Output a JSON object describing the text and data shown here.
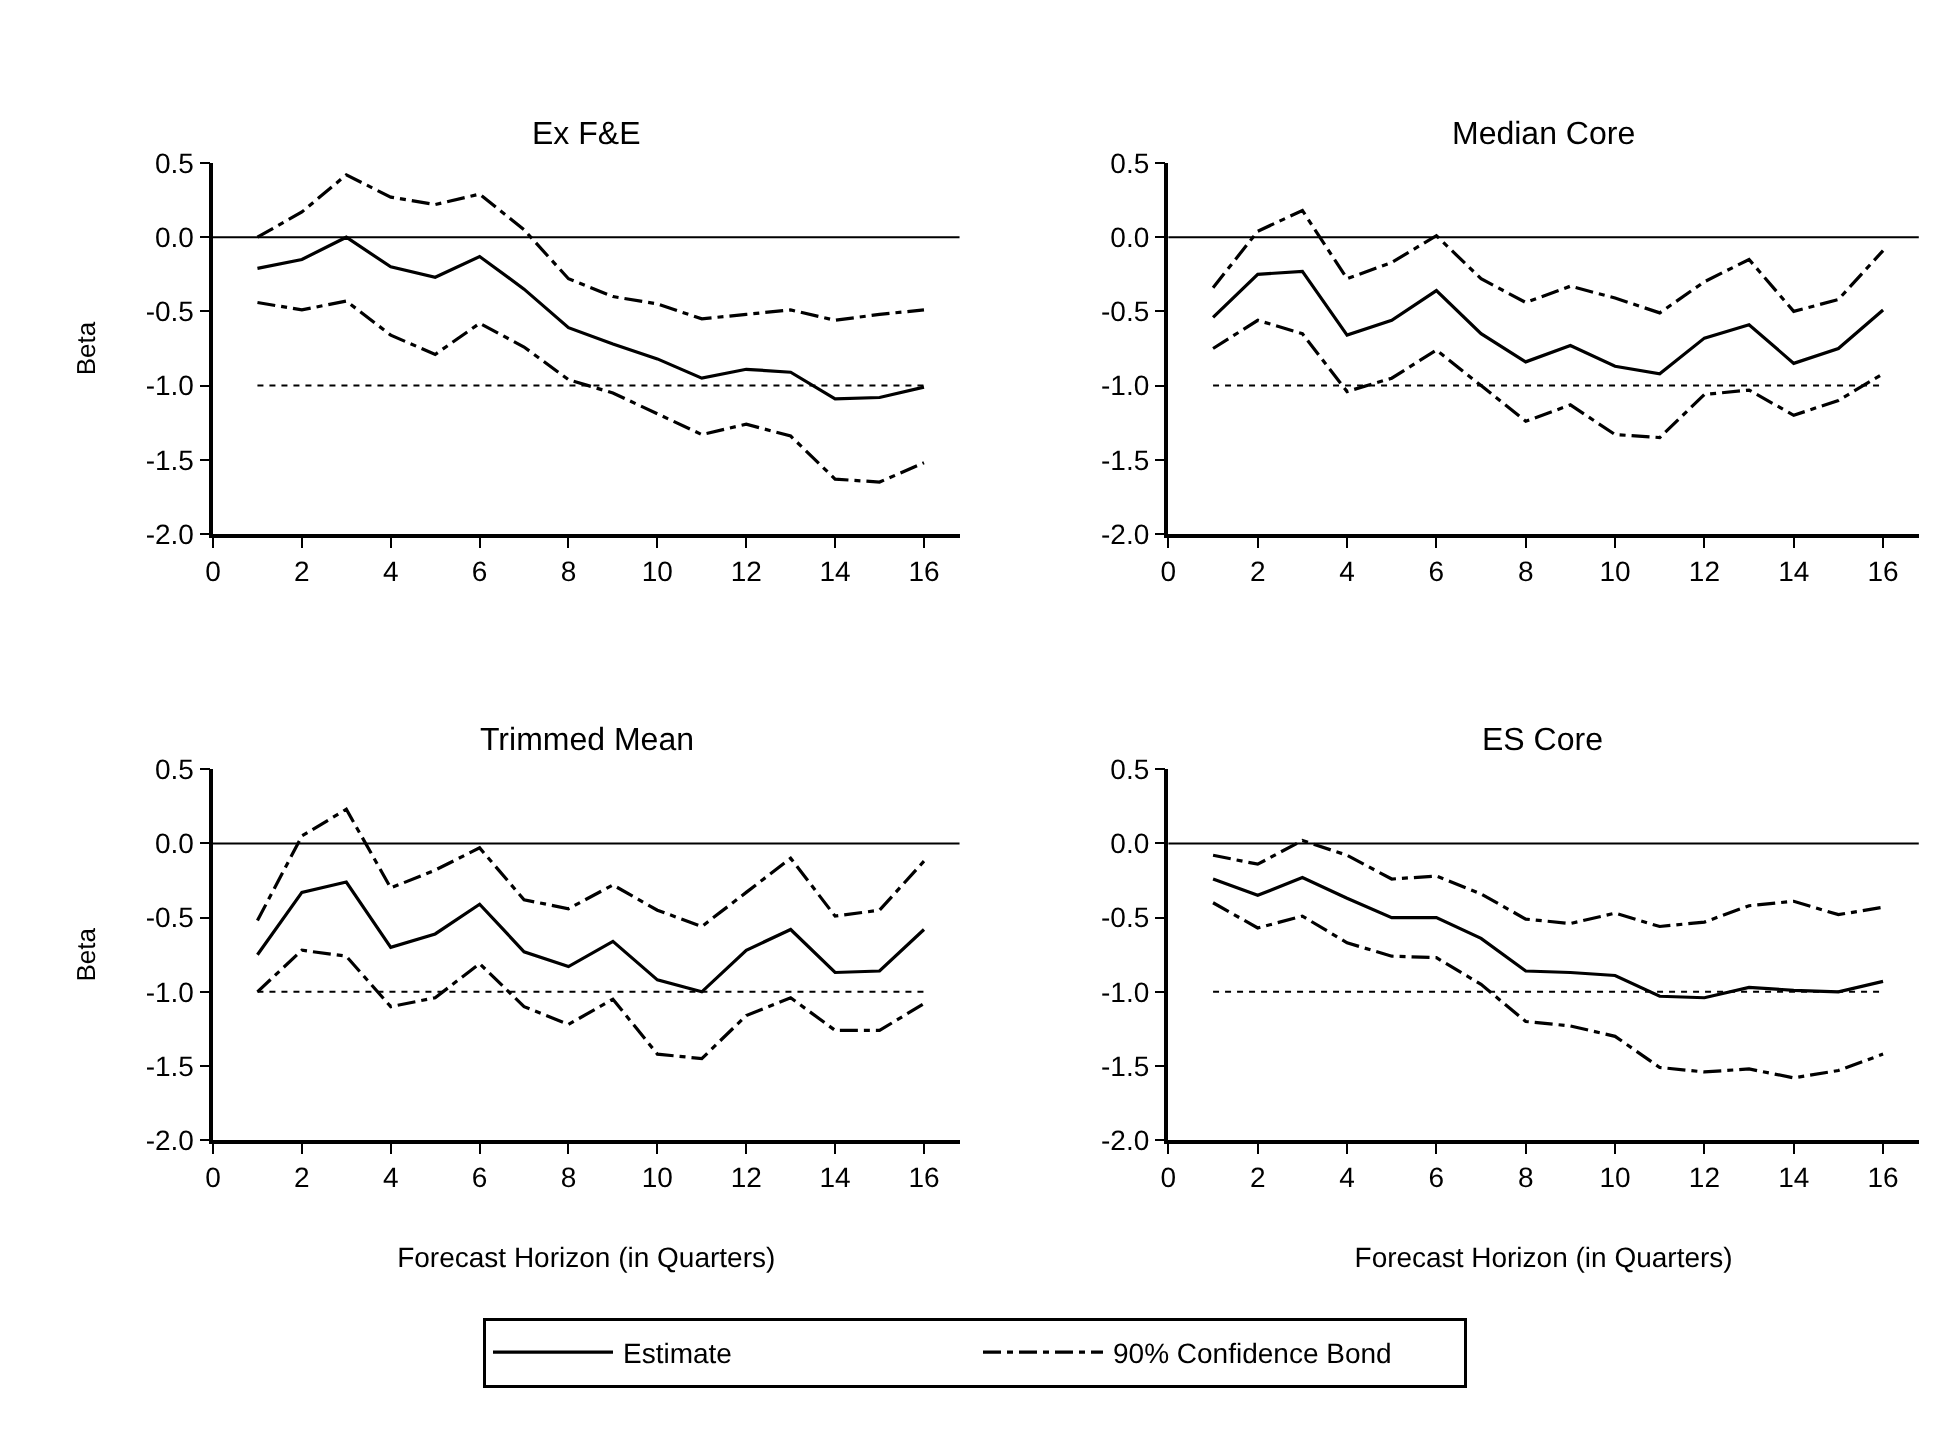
{
  "chart_data": [
    {
      "type": "line",
      "title": "Ex F&E",
      "ylabel": "Beta",
      "x": [
        1,
        2,
        3,
        4,
        5,
        6,
        7,
        8,
        9,
        10,
        11,
        12,
        13,
        14,
        15,
        16
      ],
      "xlim": [
        0,
        16.8
      ],
      "xticks": [
        0,
        2,
        4,
        6,
        8,
        10,
        12,
        14,
        16
      ],
      "ylim": [
        -2,
        0.5
      ],
      "yticks": [
        {
          "value": -2,
          "label": "-2.0"
        },
        {
          "value": -1.5,
          "label": "-1.5"
        },
        {
          "value": -1,
          "label": "-1.0"
        },
        {
          "value": -0.5,
          "label": "-0.5"
        },
        {
          "value": 0,
          "label": "0.0"
        },
        {
          "value": 0.5,
          "label": "0.5"
        }
      ],
      "legend": "bottom",
      "marker": "none",
      "series": [
        {
          "name": "Estimate",
          "color": "#000000",
          "line_style": "solid",
          "values": [
            -0.21,
            -0.15,
            0.0,
            -0.2,
            -0.27,
            -0.13,
            -0.35,
            -0.61,
            -0.72,
            -0.82,
            -0.95,
            -0.89,
            -0.91,
            -1.09,
            -1.08,
            -1.01
          ]
        },
        {
          "name": "90% Confidence Bond",
          "color": "#000000",
          "line_style": "dashdot",
          "values": [
            0.0,
            0.17,
            0.42,
            0.27,
            0.22,
            0.29,
            0.05,
            -0.28,
            -0.4,
            -0.45,
            -0.55,
            -0.52,
            -0.49,
            -0.56,
            -0.52,
            -0.49
          ]
        },
        {
          "color": "#000000",
          "line_style": "dashdot",
          "values": [
            -0.44,
            -0.49,
            -0.43,
            -0.66,
            -0.79,
            -0.58,
            -0.74,
            -0.96,
            -1.05,
            -1.19,
            -1.33,
            -1.26,
            -1.34,
            -1.63,
            -1.65,
            -1.52
          ]
        }
      ],
      "ref_lines": [
        {
          "axis": "y",
          "value": 0,
          "color": "#000000",
          "line_style": "solid"
        },
        {
          "axis": "y",
          "value": -1,
          "color": "#000000",
          "line_style": "dotted"
        }
      ]
    },
    {
      "type": "line",
      "title": "Median Core",
      "x": [
        1,
        2,
        3,
        4,
        5,
        6,
        7,
        8,
        9,
        10,
        11,
        12,
        13,
        14,
        15,
        16
      ],
      "xlim": [
        0,
        16.8
      ],
      "xticks": [
        0,
        2,
        4,
        6,
        8,
        10,
        12,
        14,
        16
      ],
      "ylim": [
        -2,
        0.5
      ],
      "yticks": [
        {
          "value": -2,
          "label": "-2.0"
        },
        {
          "value": -1.5,
          "label": "-1.5"
        },
        {
          "value": -1,
          "label": "-1.0"
        },
        {
          "value": -0.5,
          "label": "-0.5"
        },
        {
          "value": 0,
          "label": "0.0"
        },
        {
          "value": 0.5,
          "label": "0.5"
        }
      ],
      "legend": "bottom",
      "marker": "none",
      "series": [
        {
          "name": "Estimate",
          "color": "#000000",
          "line_style": "solid",
          "values": [
            -0.54,
            -0.25,
            -0.23,
            -0.66,
            -0.56,
            -0.36,
            -0.65,
            -0.84,
            -0.73,
            -0.87,
            -0.92,
            -0.68,
            -0.59,
            -0.85,
            -0.75,
            -0.49
          ]
        },
        {
          "name": "90% Confidence Bond",
          "color": "#000000",
          "line_style": "dashdot",
          "values": [
            -0.34,
            0.04,
            0.18,
            -0.28,
            -0.17,
            0.01,
            -0.28,
            -0.44,
            -0.33,
            -0.41,
            -0.51,
            -0.3,
            -0.15,
            -0.5,
            -0.42,
            -0.09
          ]
        },
        {
          "color": "#000000",
          "line_style": "dashdot",
          "values": [
            -0.75,
            -0.56,
            -0.65,
            -1.04,
            -0.95,
            -0.76,
            -1.0,
            -1.24,
            -1.13,
            -1.33,
            -1.35,
            -1.06,
            -1.03,
            -1.2,
            -1.1,
            -0.92
          ]
        }
      ],
      "ref_lines": [
        {
          "axis": "y",
          "value": 0,
          "color": "#000000",
          "line_style": "solid"
        },
        {
          "axis": "y",
          "value": -1,
          "color": "#000000",
          "line_style": "dotted"
        }
      ]
    },
    {
      "type": "line",
      "title": "Trimmed Mean",
      "ylabel": "Beta",
      "xlabel": "Forecast Horizon (in Quarters)",
      "x": [
        1,
        2,
        3,
        4,
        5,
        6,
        7,
        8,
        9,
        10,
        11,
        12,
        13,
        14,
        15,
        16
      ],
      "xlim": [
        0,
        16.8
      ],
      "xticks": [
        0,
        2,
        4,
        6,
        8,
        10,
        12,
        14,
        16
      ],
      "ylim": [
        -2,
        0.5
      ],
      "yticks": [
        {
          "value": -2,
          "label": "-2.0"
        },
        {
          "value": -1.5,
          "label": "-1.5"
        },
        {
          "value": -1,
          "label": "-1.0"
        },
        {
          "value": -0.5,
          "label": "-0.5"
        },
        {
          "value": 0,
          "label": "0.0"
        },
        {
          "value": 0.5,
          "label": "0.5"
        }
      ],
      "legend": "bottom",
      "marker": "none",
      "series": [
        {
          "name": "Estimate",
          "color": "#000000",
          "line_style": "solid",
          "values": [
            -0.75,
            -0.33,
            -0.26,
            -0.7,
            -0.61,
            -0.41,
            -0.73,
            -0.83,
            -0.66,
            -0.92,
            -1.0,
            -0.72,
            -0.58,
            -0.87,
            -0.86,
            -0.58
          ]
        },
        {
          "name": "90% Confidence Bond",
          "color": "#000000",
          "line_style": "dashdot",
          "values": [
            -0.52,
            0.05,
            0.23,
            -0.3,
            -0.18,
            -0.03,
            -0.38,
            -0.44,
            -0.28,
            -0.45,
            -0.56,
            -0.33,
            -0.1,
            -0.49,
            -0.45,
            -0.12
          ]
        },
        {
          "color": "#000000",
          "line_style": "dashdot",
          "values": [
            -1.0,
            -0.72,
            -0.76,
            -1.1,
            -1.04,
            -0.81,
            -1.1,
            -1.22,
            -1.05,
            -1.42,
            -1.45,
            -1.16,
            -1.04,
            -1.26,
            -1.26,
            -1.08
          ]
        }
      ],
      "ref_lines": [
        {
          "axis": "y",
          "value": 0,
          "color": "#000000",
          "line_style": "solid"
        },
        {
          "axis": "y",
          "value": -1,
          "color": "#000000",
          "line_style": "dotted"
        }
      ]
    },
    {
      "type": "line",
      "title": "ES Core",
      "xlabel": "Forecast Horizon (in Quarters)",
      "x": [
        1,
        2,
        3,
        4,
        5,
        6,
        7,
        8,
        9,
        10,
        11,
        12,
        13,
        14,
        15,
        16
      ],
      "xlim": [
        0,
        16.8
      ],
      "xticks": [
        0,
        2,
        4,
        6,
        8,
        10,
        12,
        14,
        16
      ],
      "ylim": [
        -2,
        0.5
      ],
      "yticks": [
        {
          "value": -2,
          "label": "-2.0"
        },
        {
          "value": -1.5,
          "label": "-1.5"
        },
        {
          "value": -1,
          "label": "-1.0"
        },
        {
          "value": -0.5,
          "label": "-0.5"
        },
        {
          "value": 0,
          "label": "0.0"
        },
        {
          "value": 0.5,
          "label": "0.5"
        }
      ],
      "legend": "bottom",
      "marker": "none",
      "series": [
        {
          "name": "Estimate",
          "color": "#000000",
          "line_style": "solid",
          "values": [
            -0.24,
            -0.35,
            -0.23,
            -0.37,
            -0.5,
            -0.5,
            -0.64,
            -0.86,
            -0.87,
            -0.89,
            -1.03,
            -1.04,
            -0.97,
            -0.99,
            -1.0,
            -0.93
          ]
        },
        {
          "name": "90% Confidence Bond",
          "color": "#000000",
          "line_style": "dashdot",
          "values": [
            -0.08,
            -0.14,
            0.02,
            -0.08,
            -0.24,
            -0.22,
            -0.34,
            -0.51,
            -0.54,
            -0.47,
            -0.56,
            -0.53,
            -0.42,
            -0.39,
            -0.48,
            -0.43
          ]
        },
        {
          "color": "#000000",
          "line_style": "dashdot",
          "values": [
            -0.4,
            -0.57,
            -0.49,
            -0.67,
            -0.76,
            -0.77,
            -0.95,
            -1.2,
            -1.23,
            -1.3,
            -1.51,
            -1.54,
            -1.52,
            -1.58,
            -1.53,
            -1.42
          ]
        }
      ],
      "ref_lines": [
        {
          "axis": "y",
          "value": 0,
          "color": "#000000",
          "line_style": "solid"
        },
        {
          "axis": "y",
          "value": -1,
          "color": "#000000",
          "line_style": "dotted"
        }
      ]
    }
  ]
}
